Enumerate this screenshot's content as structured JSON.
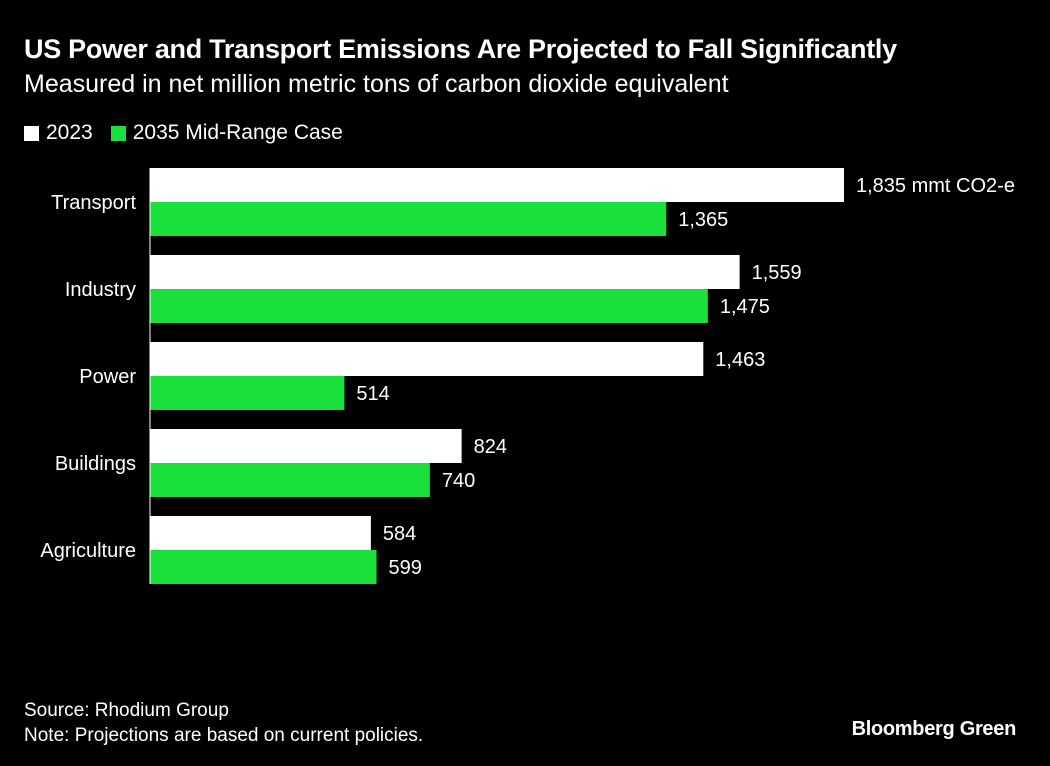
{
  "colors": {
    "background": "#000000",
    "text": "#ffffff",
    "series_2023": "#ffffff",
    "series_2035": "#19e03a"
  },
  "chart_data": {
    "type": "bar",
    "orientation": "horizontal",
    "title": "US Power and Transport Emissions Are Projected to Fall Significantly",
    "subtitle": "Measured in net million metric tons of carbon dioxide equivalent",
    "categories": [
      "Transport",
      "Industry",
      "Power",
      "Buildings",
      "Agriculture"
    ],
    "series": [
      {
        "name": "2023",
        "color": "#ffffff",
        "values": [
          1835,
          1559,
          1463,
          824,
          584
        ],
        "labels": [
          "1,835 mmt CO2-e",
          "1,559",
          "1,463",
          "824",
          "584"
        ]
      },
      {
        "name": "2035 Mid-Range Case",
        "color": "#19e03a",
        "values": [
          1365,
          1475,
          514,
          740,
          599
        ],
        "labels": [
          "1,365",
          "1,475",
          "514",
          "740",
          "599"
        ]
      }
    ],
    "xlim": [
      0,
      1835
    ],
    "grid": false,
    "legend": "top-left"
  },
  "footer": {
    "source": "Source: Rhodium Group",
    "note": "Note: Projections are based on current policies.",
    "brand": "Bloomberg Green"
  }
}
